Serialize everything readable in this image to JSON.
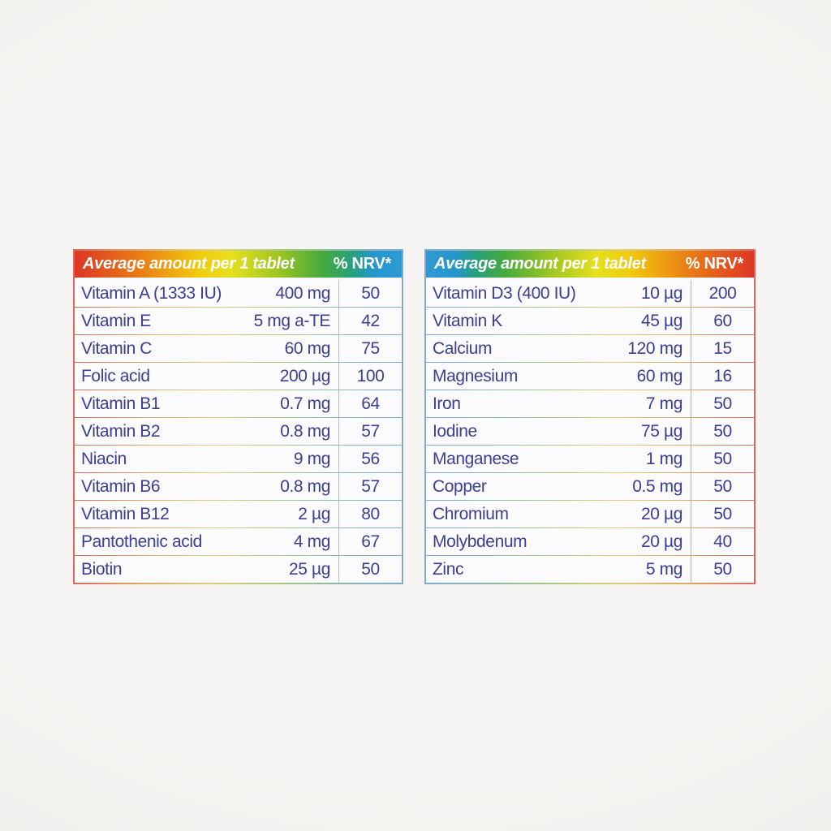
{
  "page": {
    "background_color": "#f3f2ef",
    "text_color": "#3c3e92"
  },
  "tables": [
    {
      "id": "vitamins",
      "header": {
        "title": "Average amount per 1 tablet",
        "nrv_label": "% NRV*"
      },
      "colors": {
        "header_gradient": [
          "#dc3626 0%",
          "#ea7d16 20%",
          "#f0cb0e 38%",
          "#e6e01e 48%",
          "#9fc522 62%",
          "#44aa3e 76%",
          "#27a07c 85%",
          "#2596cc 91%",
          "#2e9ad2 100%"
        ],
        "line_gradient": [
          "#d9685e 0%",
          "#ddab66 22%",
          "#dcd07c 42%",
          "#a9c781 62%",
          "#8abaab 80%",
          "#7fa8d2 100%"
        ],
        "divider": "#abc5df"
      },
      "rows": [
        {
          "name": "Vitamin A (1333 IU)",
          "amount": "400 mg",
          "nrv": "50"
        },
        {
          "name": "Vitamin E",
          "amount": "5 mg a-TE",
          "nrv": "42"
        },
        {
          "name": "Vitamin C",
          "amount": "60 mg",
          "nrv": "75"
        },
        {
          "name": "Folic acid",
          "amount": "200 µg",
          "nrv": "100"
        },
        {
          "name": "Vitamin B1",
          "amount": "0.7 mg",
          "nrv": "64"
        },
        {
          "name": "Vitamin B2",
          "amount": "0.8 mg",
          "nrv": "57"
        },
        {
          "name": "Niacin",
          "amount": "9 mg",
          "nrv": "56"
        },
        {
          "name": "Vitamin B6",
          "amount": "0.8 mg",
          "nrv": "57"
        },
        {
          "name": "Vitamin B12",
          "amount": "2 µg",
          "nrv": "80"
        },
        {
          "name": "Pantothenic acid",
          "amount": "4 mg",
          "nrv": "67"
        },
        {
          "name": "Biotin",
          "amount": "25 µg",
          "nrv": "50"
        }
      ]
    },
    {
      "id": "minerals",
      "header": {
        "title": "Average amount per 1 tablet",
        "nrv_label": "% NRV*"
      },
      "colors": {
        "header_gradient": [
          "#2e9ad2 0%",
          "#2596cc 9%",
          "#27a07c 15%",
          "#44aa3e 24%",
          "#9fc522 38%",
          "#e6e01e 52%",
          "#f0cb0e 62%",
          "#ea7d16 80%",
          "#dc3626 100%"
        ],
        "line_gradient": [
          "#7fa8d2 0%",
          "#8abaab 20%",
          "#a9c781 38%",
          "#dcd07c 58%",
          "#ddab66 78%",
          "#d9685e 100%"
        ],
        "divider": "#dfa49e"
      },
      "rows": [
        {
          "name": "Vitamin D3 (400 IU)",
          "amount": "10 µg",
          "nrv": "200"
        },
        {
          "name": "Vitamin K",
          "amount": "45 µg",
          "nrv": "60"
        },
        {
          "name": "Calcium",
          "amount": "120 mg",
          "nrv": "15"
        },
        {
          "name": "Magnesium",
          "amount": "60 mg",
          "nrv": "16"
        },
        {
          "name": "Iron",
          "amount": "7 mg",
          "nrv": "50"
        },
        {
          "name": "Iodine",
          "amount": "75 µg",
          "nrv": "50"
        },
        {
          "name": "Manganese",
          "amount": "1 mg",
          "nrv": "50"
        },
        {
          "name": "Copper",
          "amount": "0.5 mg",
          "nrv": "50"
        },
        {
          "name": "Chromium",
          "amount": "20 µg",
          "nrv": "50"
        },
        {
          "name": "Molybdenum",
          "amount": "20 µg",
          "nrv": "40"
        },
        {
          "name": "Zinc",
          "amount": "5 mg",
          "nrv": "50"
        }
      ]
    }
  ]
}
